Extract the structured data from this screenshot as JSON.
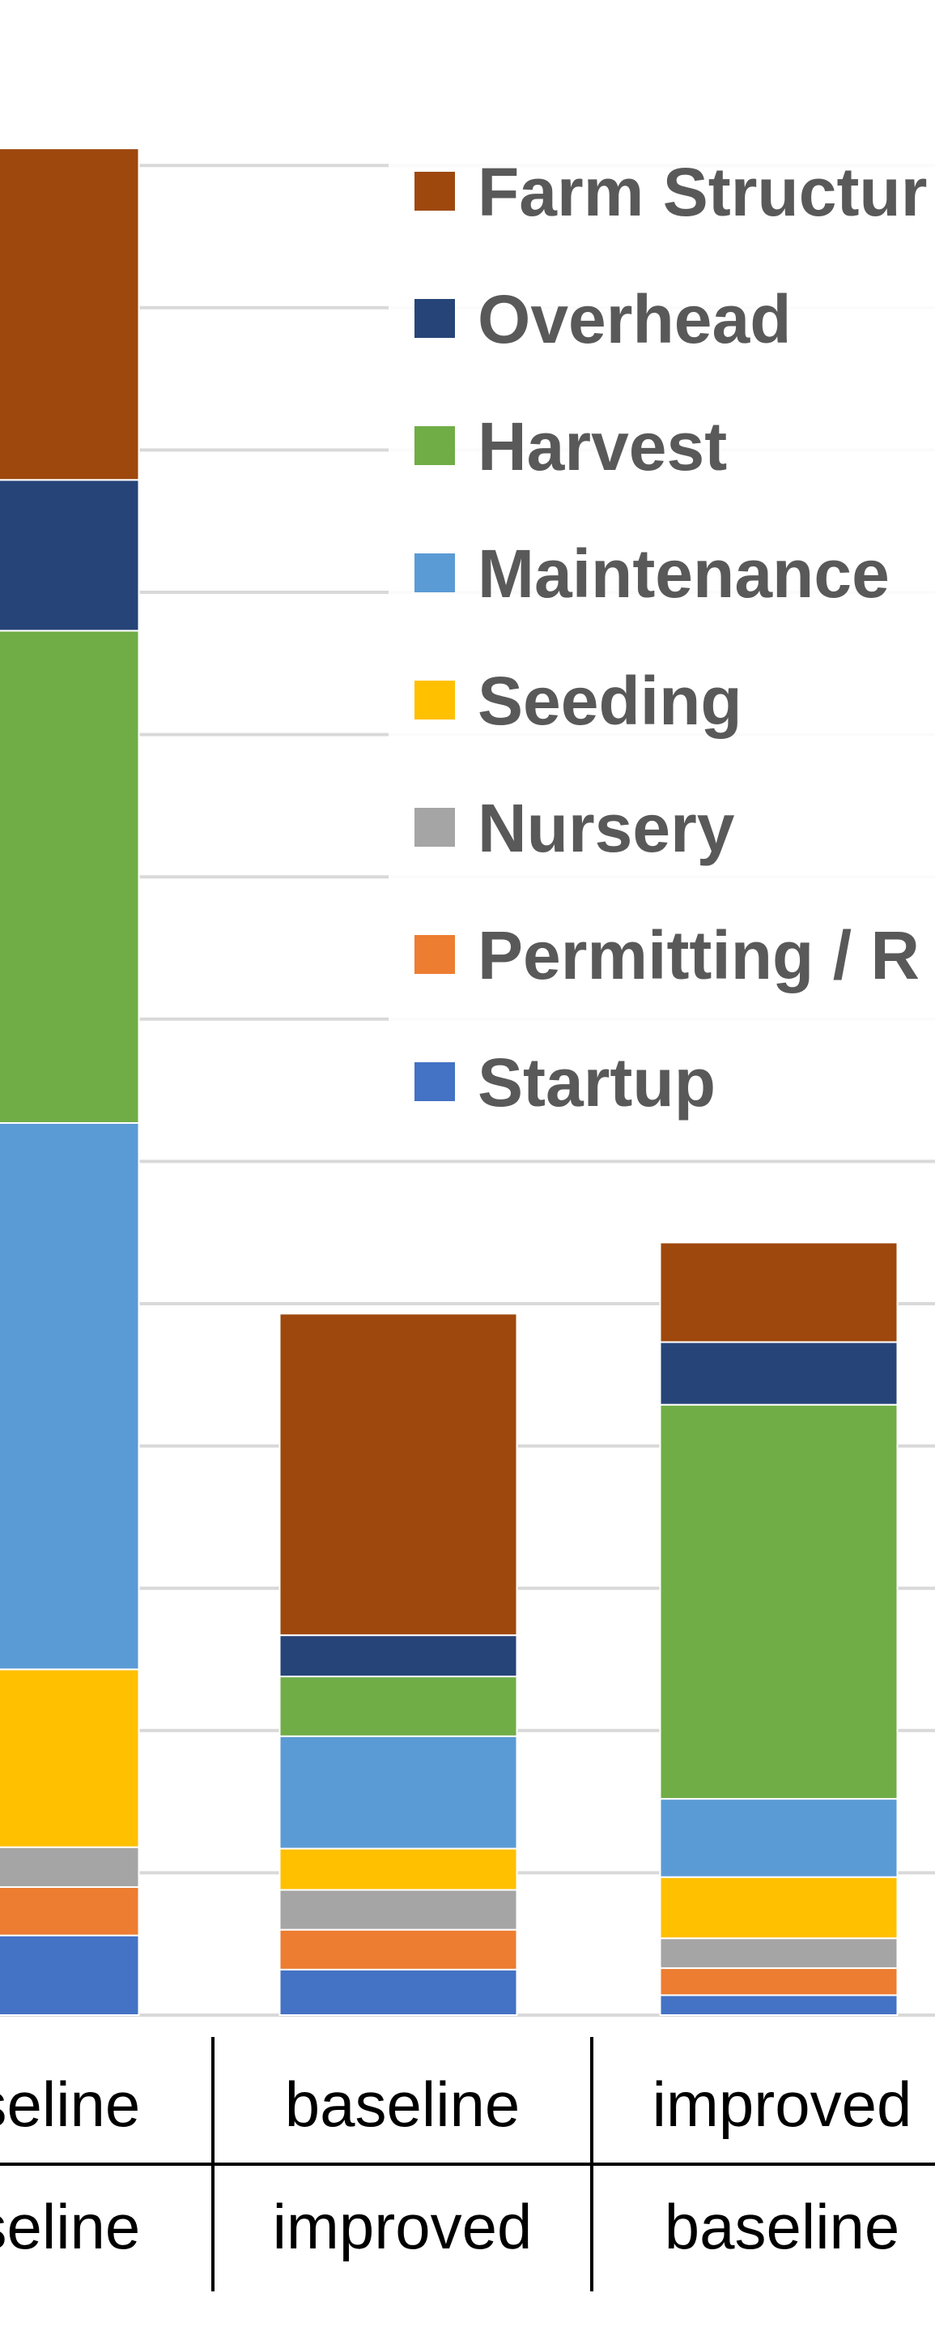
{
  "chart_data": {
    "type": "bar",
    "stacked": true,
    "title": "",
    "xlabel": "",
    "ylabel": "",
    "y_axis_labels_visible": false,
    "value_units": "gridline intervals",
    "ylim": [
      0,
      13
    ],
    "grid": true,
    "legend_placement": "top-right",
    "categories": [
      {
        "row1": "baseline",
        "row2": "baseline"
      },
      {
        "row1": "baseline",
        "row2": "improved"
      },
      {
        "row1": "improved",
        "row2": "baseline"
      }
    ],
    "series": [
      {
        "name": "Startup",
        "color": "#4472C4",
        "values": [
          0.56,
          0.32,
          0.14
        ]
      },
      {
        "name": "Permitting / R",
        "color": "#ED7D31",
        "values": [
          0.34,
          0.28,
          0.19
        ]
      },
      {
        "name": "Nursery",
        "color": "#A5A5A5",
        "values": [
          0.28,
          0.28,
          0.21
        ]
      },
      {
        "name": "Seeding",
        "color": "#FFC000",
        "values": [
          1.25,
          0.29,
          0.43
        ]
      },
      {
        "name": "Maintenance",
        "color": "#5B9BD5",
        "values": [
          3.84,
          0.79,
          0.55
        ]
      },
      {
        "name": "Harvest",
        "color": "#70AD47",
        "values": [
          3.46,
          0.42,
          2.77
        ]
      },
      {
        "name": "Overhead",
        "color": "#264478",
        "values": [
          1.06,
          0.29,
          0.44
        ]
      },
      {
        "name": "Farm Structur",
        "color": "#9E480E",
        "values": [
          2.33,
          2.26,
          0.7
        ]
      }
    ],
    "legend_order": [
      "Farm Structur",
      "Overhead",
      "Harvest",
      "Maintenance",
      "Seeding",
      "Nursery",
      "Permitting / R",
      "Startup"
    ]
  },
  "colors": {
    "gridline": "#D9D9D9",
    "legend_text": "#595959",
    "table_lines": "#000000"
  }
}
